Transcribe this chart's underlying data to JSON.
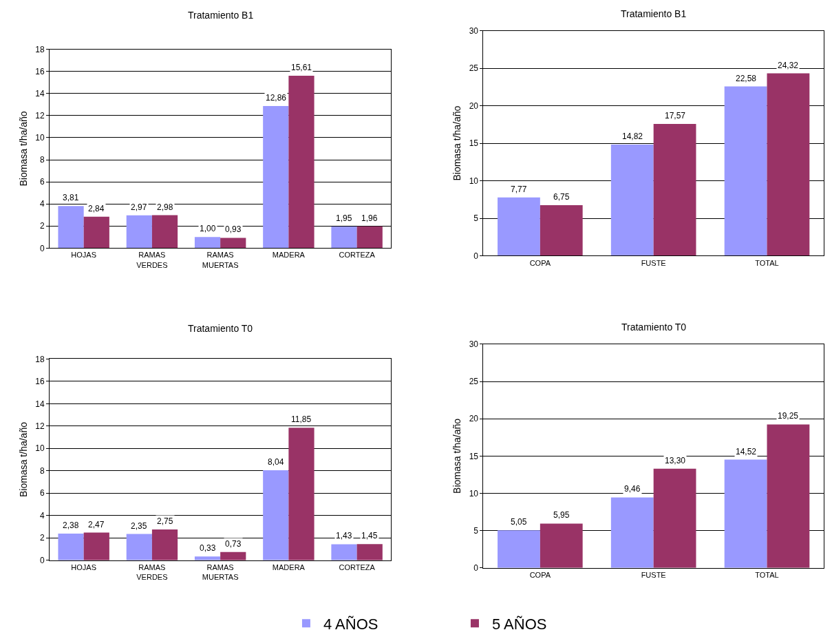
{
  "chart_data": [
    {
      "type": "bar",
      "title": "Tratamiento B1",
      "ylabel": "Biomasa t/ha/año",
      "categories": [
        "HOJAS",
        "RAMAS VERDES",
        "RAMAS MUERTAS",
        "MADERA",
        "CORTEZA"
      ],
      "ylim": [
        0,
        18
      ],
      "yticks": [
        0,
        2,
        4,
        6,
        8,
        10,
        12,
        14,
        16,
        18
      ],
      "grid": "y",
      "legend": "bottom",
      "series": [
        {
          "name": "4 AÑOS",
          "color": "#9999ff",
          "values": [
            3.81,
            2.97,
            1.0,
            12.86,
            1.95
          ],
          "value_labels": [
            "3,81",
            "2,97",
            "1,00",
            "12,86",
            "1,95"
          ]
        },
        {
          "name": "5 AÑOS",
          "color": "#993366",
          "values": [
            2.84,
            2.98,
            0.93,
            15.61,
            1.96
          ],
          "value_labels": [
            "2,84",
            "2,98",
            "0,93",
            "15,61",
            "1,96"
          ]
        }
      ]
    },
    {
      "type": "bar",
      "title": "Tratamiento B1",
      "ylabel": "Biomasa t/ha/año",
      "categories": [
        "COPA",
        "FUSTE",
        "TOTAL"
      ],
      "ylim": [
        0,
        30
      ],
      "yticks": [
        0,
        5,
        10,
        15,
        20,
        25,
        30
      ],
      "grid": "y",
      "legend": "bottom",
      "series": [
        {
          "name": "4 AÑOS",
          "color": "#9999ff",
          "values": [
            7.77,
            14.82,
            22.58
          ],
          "value_labels": [
            "7,77",
            "14,82",
            "22,58"
          ]
        },
        {
          "name": "5 AÑOS",
          "color": "#993366",
          "values": [
            6.75,
            17.57,
            24.32
          ],
          "value_labels": [
            "6,75",
            "17,57",
            "24,32"
          ]
        }
      ]
    },
    {
      "type": "bar",
      "title": "Tratamiento T0",
      "ylabel": "Biomasa t/ha/año",
      "categories": [
        "HOJAS",
        "RAMAS VERDES",
        "RAMAS MUERTAS",
        "MADERA",
        "CORTEZA"
      ],
      "ylim": [
        0,
        18
      ],
      "yticks": [
        0,
        2,
        4,
        6,
        8,
        10,
        12,
        14,
        16,
        18
      ],
      "grid": "y",
      "legend": "bottom",
      "series": [
        {
          "name": "4 AÑOS",
          "color": "#9999ff",
          "values": [
            2.38,
            2.35,
            0.33,
            8.04,
            1.43
          ],
          "value_labels": [
            "2,38",
            "2,35",
            "0,33",
            "8,04",
            "1,43"
          ]
        },
        {
          "name": "5 AÑOS",
          "color": "#993366",
          "values": [
            2.47,
            2.75,
            0.73,
            11.85,
            1.45
          ],
          "value_labels": [
            "2,47",
            "2,75",
            "0,73",
            "11,85",
            "1,45"
          ]
        }
      ]
    },
    {
      "type": "bar",
      "title": "Tratamiento T0",
      "ylabel": "Biomasa t/ha/año",
      "categories": [
        "COPA",
        "FUSTE",
        "TOTAL"
      ],
      "ylim": [
        0,
        30
      ],
      "yticks": [
        0,
        5,
        10,
        15,
        20,
        25,
        30
      ],
      "grid": "y",
      "legend": "bottom",
      "series": [
        {
          "name": "4 AÑOS",
          "color": "#9999ff",
          "values": [
            5.05,
            9.46,
            14.52
          ],
          "value_labels": [
            "5,05",
            "9,46",
            "14,52"
          ]
        },
        {
          "name": "5 AÑOS",
          "color": "#993366",
          "values": [
            5.95,
            13.3,
            19.25
          ],
          "value_labels": [
            "5,95",
            "13,30",
            "19,25"
          ]
        }
      ]
    }
  ]
}
